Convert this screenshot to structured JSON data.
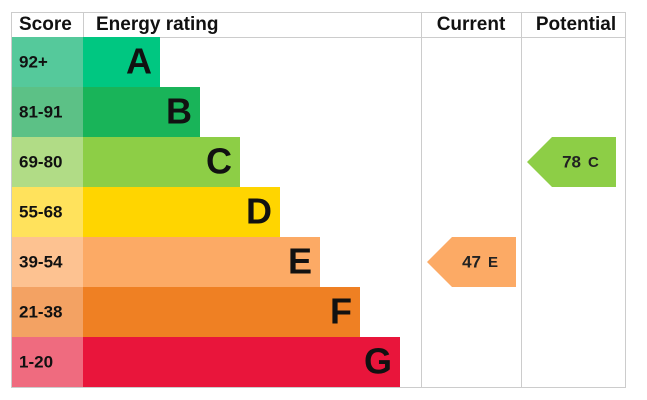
{
  "header": {
    "score": "Score",
    "rating": "Energy rating",
    "current": "Current",
    "potential": "Potential"
  },
  "bands": [
    {
      "score": "92+",
      "letter": "A",
      "color": "#00c781",
      "score_color": "#55c99b"
    },
    {
      "score": "81-91",
      "letter": "B",
      "color": "#19b459",
      "score_color": "#5cc186"
    },
    {
      "score": "69-80",
      "letter": "C",
      "color": "#8dce46",
      "score_color": "#b1dc86"
    },
    {
      "score": "55-68",
      "letter": "D",
      "color": "#ffd500",
      "score_color": "#ffe25c"
    },
    {
      "score": "39-54",
      "letter": "E",
      "color": "#fcaa65",
      "score_color": "#fdc291"
    },
    {
      "score": "21-38",
      "letter": "F",
      "color": "#ef8023",
      "score_color": "#f3a263"
    },
    {
      "score": "1-20",
      "letter": "G",
      "color": "#e9153b",
      "score_color": "#ef6b7f"
    }
  ],
  "current": {
    "value": 47,
    "letter": "E"
  },
  "potential": {
    "value": 78,
    "letter": "C"
  }
}
